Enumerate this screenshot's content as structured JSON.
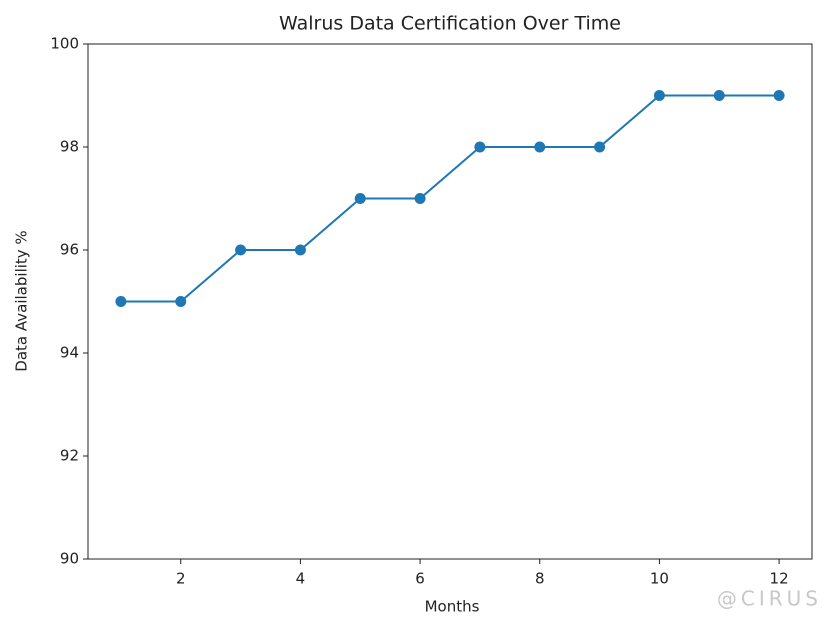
{
  "chart_data": {
    "type": "line",
    "title": "Walrus Data Certification Over Time",
    "x_label": "Months",
    "y_label": "Data Availability %",
    "x": [
      1,
      2,
      3,
      4,
      5,
      6,
      7,
      8,
      9,
      10,
      11,
      12
    ],
    "series": [
      {
        "name": "Data Availability",
        "color": "#1f77b4",
        "values": [
          95,
          95,
          96,
          96,
          97,
          97,
          98,
          98,
          98,
          99,
          99,
          99
        ]
      }
    ],
    "xlim": [
      0.45,
      12.55
    ],
    "xticks": [
      2,
      4,
      6,
      8,
      10,
      12
    ],
    "ylim": [
      90,
      100
    ],
    "yticks": [
      90,
      92,
      94,
      96,
      98,
      100
    ],
    "grid": false,
    "markers": true,
    "watermark": "@CIRUS"
  }
}
